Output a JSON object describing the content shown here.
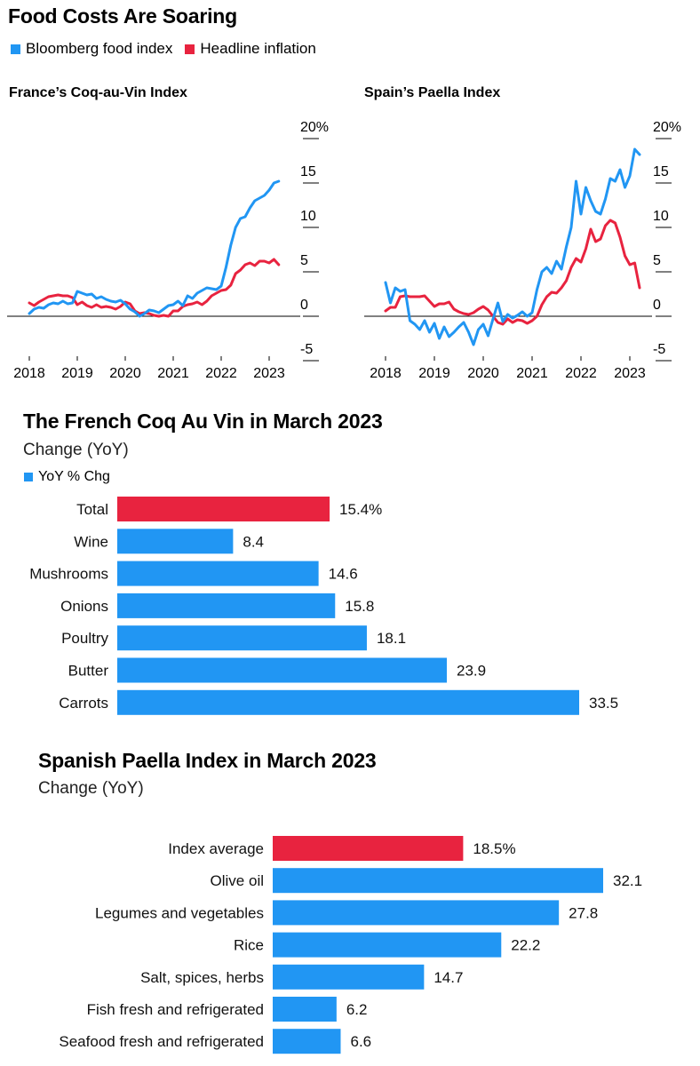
{
  "header": {
    "title": "Food Costs Are Soaring",
    "legend": [
      {
        "label": "Bloomberg food index",
        "color": "#2196f3"
      },
      {
        "label": "Headline inflation",
        "color": "#e8233f"
      }
    ]
  },
  "chart_data": [
    {
      "type": "line",
      "title": "France’s Coq-au-Vin Index",
      "x_ticks": [
        2018,
        2019,
        2020,
        2021,
        2022,
        2023
      ],
      "y_ticks": [
        20,
        15,
        10,
        5,
        0,
        -5
      ],
      "y_tick_labels": [
        "20%",
        "15",
        "10",
        "5",
        "0",
        "-5"
      ],
      "ylim": [
        -5,
        20
      ],
      "xlim": [
        2018,
        2023.4
      ],
      "series": [
        {
          "name": "Bloomberg food index",
          "color": "#2196f3",
          "x": [
            2018.0,
            2018.1,
            2018.2,
            2018.3,
            2018.4,
            2018.5,
            2018.6,
            2018.7,
            2018.8,
            2018.9,
            2019.0,
            2019.1,
            2019.2,
            2019.3,
            2019.4,
            2019.5,
            2019.6,
            2019.7,
            2019.8,
            2019.9,
            2020.0,
            2020.1,
            2020.2,
            2020.3,
            2020.4,
            2020.5,
            2020.6,
            2020.7,
            2020.8,
            2020.9,
            2021.0,
            2021.1,
            2021.2,
            2021.3,
            2021.4,
            2021.5,
            2021.6,
            2021.7,
            2021.8,
            2021.9,
            2022.0,
            2022.1,
            2022.2,
            2022.3,
            2022.4,
            2022.5,
            2022.6,
            2022.7,
            2022.8,
            2022.9,
            2023.0,
            2023.1,
            2023.2
          ],
          "values": [
            0.3,
            0.8,
            1.0,
            0.9,
            1.3,
            1.5,
            1.4,
            1.7,
            1.4,
            1.5,
            2.8,
            2.6,
            2.4,
            2.5,
            2.0,
            2.2,
            1.9,
            1.7,
            1.6,
            1.8,
            1.4,
            0.8,
            0.5,
            0.0,
            0.3,
            0.7,
            0.6,
            0.4,
            0.8,
            1.2,
            1.3,
            1.7,
            1.2,
            2.3,
            2.0,
            2.6,
            2.9,
            3.2,
            3.1,
            3.0,
            3.4,
            5.5,
            8.0,
            10.0,
            11.0,
            11.2,
            12.2,
            13.0,
            13.3,
            13.6,
            14.2,
            15.0,
            15.2
          ]
        },
        {
          "name": "Headline inflation",
          "color": "#e8233f",
          "x": [
            2018.0,
            2018.1,
            2018.2,
            2018.3,
            2018.4,
            2018.5,
            2018.6,
            2018.7,
            2018.8,
            2018.9,
            2019.0,
            2019.1,
            2019.2,
            2019.3,
            2019.4,
            2019.5,
            2019.6,
            2019.7,
            2019.8,
            2019.9,
            2020.0,
            2020.1,
            2020.2,
            2020.3,
            2020.4,
            2020.5,
            2020.6,
            2020.7,
            2020.8,
            2020.9,
            2021.0,
            2021.1,
            2021.2,
            2021.3,
            2021.4,
            2021.5,
            2021.6,
            2021.7,
            2021.8,
            2021.9,
            2022.0,
            2022.1,
            2022.2,
            2022.3,
            2022.4,
            2022.5,
            2022.6,
            2022.7,
            2022.8,
            2022.9,
            2023.0,
            2023.1,
            2023.2
          ],
          "values": [
            1.5,
            1.2,
            1.6,
            1.9,
            2.2,
            2.3,
            2.4,
            2.3,
            2.3,
            2.1,
            1.3,
            1.6,
            1.2,
            1.0,
            1.3,
            1.0,
            1.1,
            1.0,
            0.8,
            1.1,
            1.6,
            1.4,
            0.6,
            0.3,
            0.4,
            0.3,
            0.1,
            0.0,
            0.1,
            0.0,
            0.6,
            0.6,
            1.1,
            1.3,
            1.4,
            1.6,
            1.3,
            1.7,
            2.3,
            2.6,
            2.9,
            3.0,
            3.5,
            4.8,
            5.2,
            5.8,
            6.0,
            5.7,
            6.2,
            6.2,
            6.0,
            6.4,
            5.8
          ]
        }
      ]
    },
    {
      "type": "line",
      "title": "Spain’s Paella Index",
      "x_ticks": [
        2018,
        2019,
        2020,
        2021,
        2022,
        2023
      ],
      "y_ticks": [
        20,
        15,
        10,
        5,
        0,
        -5
      ],
      "y_tick_labels": [
        "20%",
        "15",
        "10",
        "5",
        "0",
        "-5"
      ],
      "ylim": [
        -5,
        20
      ],
      "xlim": [
        2018,
        2023.4
      ],
      "series": [
        {
          "name": "Bloomberg food index",
          "color": "#2196f3",
          "x": [
            2018.0,
            2018.1,
            2018.2,
            2018.3,
            2018.4,
            2018.5,
            2018.6,
            2018.7,
            2018.8,
            2018.9,
            2019.0,
            2019.1,
            2019.2,
            2019.3,
            2019.4,
            2019.5,
            2019.6,
            2019.7,
            2019.8,
            2019.9,
            2020.0,
            2020.1,
            2020.2,
            2020.3,
            2020.4,
            2020.5,
            2020.6,
            2020.7,
            2020.8,
            2020.9,
            2021.0,
            2021.1,
            2021.2,
            2021.3,
            2021.4,
            2021.5,
            2021.6,
            2021.7,
            2021.8,
            2021.9,
            2022.0,
            2022.1,
            2022.2,
            2022.3,
            2022.4,
            2022.5,
            2022.6,
            2022.7,
            2022.8,
            2022.9,
            2023.0,
            2023.1,
            2023.2
          ],
          "values": [
            3.8,
            1.5,
            3.2,
            2.8,
            3.0,
            -0.5,
            -0.9,
            -1.5,
            -0.5,
            -1.8,
            -0.8,
            -2.5,
            -1.2,
            -2.3,
            -1.8,
            -1.2,
            -0.7,
            -1.8,
            -3.2,
            -1.5,
            -0.9,
            -2.2,
            -0.3,
            1.5,
            -0.6,
            0.2,
            -0.2,
            0.1,
            0.5,
            0.0,
            0.4,
            3.0,
            5.0,
            5.5,
            4.8,
            6.2,
            5.3,
            7.8,
            10.0,
            15.2,
            11.5,
            14.5,
            13.0,
            11.8,
            11.5,
            13.2,
            15.5,
            15.2,
            16.5,
            14.5,
            15.8,
            18.8,
            18.2
          ]
        },
        {
          "name": "Headline inflation",
          "color": "#e8233f",
          "x": [
            2018.0,
            2018.1,
            2018.2,
            2018.3,
            2018.4,
            2018.5,
            2018.6,
            2018.7,
            2018.8,
            2018.9,
            2019.0,
            2019.1,
            2019.2,
            2019.3,
            2019.4,
            2019.5,
            2019.6,
            2019.7,
            2019.8,
            2019.9,
            2020.0,
            2020.1,
            2020.2,
            2020.3,
            2020.4,
            2020.5,
            2020.6,
            2020.7,
            2020.8,
            2020.9,
            2021.0,
            2021.1,
            2021.2,
            2021.3,
            2021.4,
            2021.5,
            2021.6,
            2021.7,
            2021.8,
            2021.9,
            2022.0,
            2022.1,
            2022.2,
            2022.3,
            2022.4,
            2022.5,
            2022.6,
            2022.7,
            2022.8,
            2022.9,
            2023.0,
            2023.1,
            2023.2
          ],
          "values": [
            0.6,
            1.0,
            1.0,
            2.2,
            2.3,
            2.2,
            2.2,
            2.2,
            2.3,
            1.7,
            1.1,
            1.4,
            1.4,
            1.6,
            0.8,
            0.5,
            0.3,
            0.2,
            0.4,
            0.8,
            1.1,
            0.7,
            0.0,
            -0.7,
            -0.9,
            -0.3,
            -0.7,
            -0.4,
            -0.5,
            -0.8,
            -0.5,
            0.0,
            1.3,
            2.2,
            2.7,
            2.6,
            3.2,
            4.0,
            5.5,
            6.5,
            6.1,
            7.6,
            9.8,
            8.4,
            8.7,
            10.2,
            10.8,
            10.5,
            8.9,
            6.8,
            5.8,
            6.0,
            3.2
          ]
        }
      ]
    },
    {
      "type": "bar",
      "orientation": "horizontal",
      "title": "The French Coq Au Vin in March 2023",
      "subtitle": "Change (YoY)",
      "legend": {
        "label": "YoY % Chg",
        "color": "#2196f3"
      },
      "categories": [
        "Total",
        "Wine",
        "Mushrooms",
        "Onions",
        "Poultry",
        "Butter",
        "Carrots"
      ],
      "values": [
        15.4,
        8.4,
        14.6,
        15.8,
        18.1,
        23.9,
        33.5
      ],
      "value_labels": [
        "15.4%",
        "8.4",
        "14.6",
        "15.8",
        "18.1",
        "23.9",
        "33.5"
      ],
      "highlight_index": 0,
      "colors": {
        "bar": "#2196f3",
        "highlight": "#e8233f"
      },
      "xlim": [
        0,
        33.5
      ]
    },
    {
      "type": "bar",
      "orientation": "horizontal",
      "title": "Spanish Paella Index in March 2023",
      "subtitle": "Change (YoY)",
      "categories": [
        "Index average",
        "Olive oil",
        "Legumes and vegetables",
        "Rice",
        "Salt, spices, herbs",
        "Fish fresh and refrigerated",
        "Seafood fresh and refrigerated"
      ],
      "values": [
        18.5,
        32.1,
        27.8,
        22.2,
        14.7,
        6.2,
        6.6
      ],
      "value_labels": [
        "18.5%",
        "32.1",
        "27.8",
        "22.2",
        "14.7",
        "6.2",
        "6.6"
      ],
      "highlight_index": 0,
      "colors": {
        "bar": "#2196f3",
        "highlight": "#e8233f"
      },
      "xlim": [
        0,
        32.1
      ]
    }
  ]
}
